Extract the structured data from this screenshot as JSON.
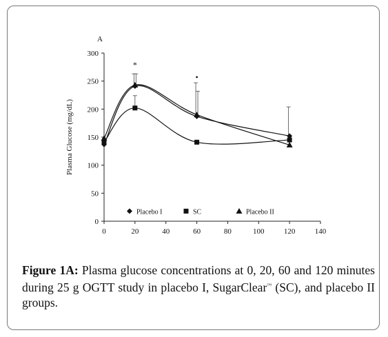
{
  "chart_data": {
    "type": "line",
    "panel_label": "A",
    "ylabel": "Plasma Glucose (mg/dL)",
    "xlabel": "",
    "x": [
      0,
      20,
      60,
      120
    ],
    "xlim": [
      0,
      140
    ],
    "ylim": [
      0,
      300
    ],
    "x_ticks": [
      0,
      20,
      40,
      60,
      80,
      100,
      120,
      140
    ],
    "y_ticks": [
      0,
      50,
      100,
      150,
      200,
      250,
      300
    ],
    "grid": false,
    "legend_position": "bottom-inside",
    "series": [
      {
        "name": "Placebo I",
        "marker": "diamond",
        "values": [
          137,
          241,
          187,
          152
        ],
        "err_upper": [
          0,
          22,
          60,
          52
        ]
      },
      {
        "name": "SC",
        "marker": "square",
        "values": [
          141,
          202,
          141,
          145
        ],
        "err_upper": [
          0,
          22,
          0,
          0
        ]
      },
      {
        "name": "Placebo II",
        "marker": "triangle",
        "values": [
          148,
          243,
          190,
          136
        ],
        "err_upper": [
          0,
          20,
          42,
          0
        ]
      }
    ],
    "annotations": [
      {
        "text": "*",
        "x": 20
      },
      {
        "text": "•",
        "x": 60
      }
    ]
  },
  "caption": {
    "label": "Figure 1A:",
    "text_1": " Plasma glucose concentrations at 0, 20, 60 and 120 minutes during 25 g OGTT study in placebo I, SugarClear",
    "tm": "™",
    "text_2": " (SC), and placebo II groups."
  },
  "colors": {
    "line": "#111111",
    "axis": "#222222",
    "frame": "#777777"
  }
}
